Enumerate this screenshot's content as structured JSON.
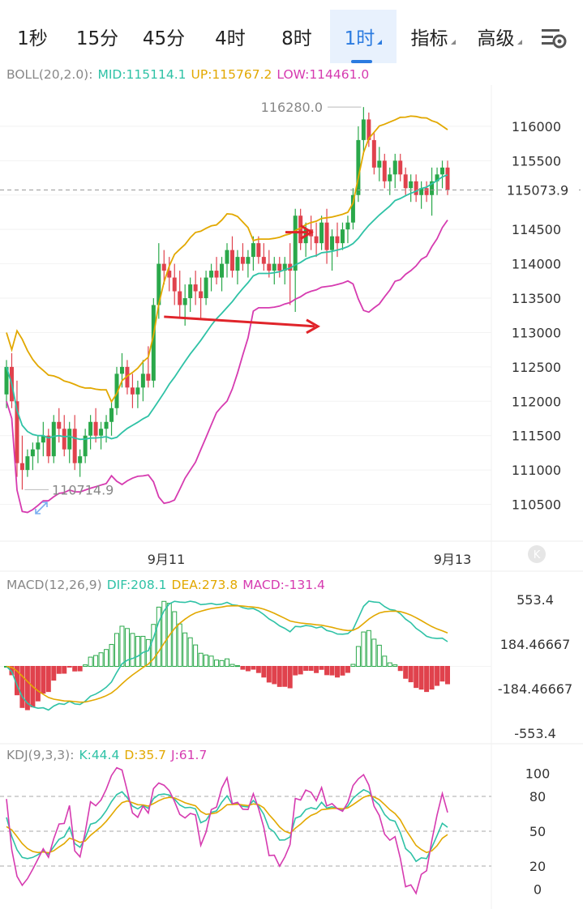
{
  "tabs": [
    {
      "label": "1秒",
      "active": false,
      "dropdown": false
    },
    {
      "label": "15分",
      "active": false,
      "dropdown": false
    },
    {
      "label": "45分",
      "active": false,
      "dropdown": false
    },
    {
      "label": "4时",
      "active": false,
      "dropdown": false
    },
    {
      "label": "8时",
      "active": false,
      "dropdown": false
    },
    {
      "label": "1时",
      "active": true,
      "dropdown": true
    },
    {
      "label": "指标",
      "active": false,
      "dropdown": true
    },
    {
      "label": "高级",
      "active": false,
      "dropdown": true
    }
  ],
  "settings_icon": "chart-settings-icon",
  "colors": {
    "up": "#2aa84a",
    "down": "#e0424d",
    "mid": "#2fc2a6",
    "upper": "#e2a800",
    "lower": "#d63bb0",
    "arrow": "#e0242a",
    "accent": "#2b7be0"
  },
  "boll": {
    "label": "BOLL(20,2.0):",
    "mid": "MID:115114.1",
    "up": "UP:115767.2",
    "low": "LOW:114461.0"
  },
  "macd": {
    "label": "MACD(12,26,9)",
    "dif": "DIF:208.1",
    "dea": "DEA:273.8",
    "macd": "MACD:-131.4"
  },
  "kdj": {
    "label": "KDJ(9,3,3):",
    "k": "K:44.4",
    "d": "D:35.7",
    "j": "J:61.7"
  },
  "chart_data": {
    "type": "candlestick",
    "price_axis": {
      "ticks": [
        "116000",
        "115500",
        "115000",
        "114500",
        "114000",
        "113500",
        "113000",
        "112500",
        "112000",
        "111500",
        "111000",
        "110500"
      ],
      "range": [
        110000,
        116600
      ]
    },
    "current_price": "115073.9",
    "high_annotation": "116280.0",
    "low_annotation": "110714.9",
    "x_labels": [
      "9月11",
      "9月13"
    ],
    "candles": [
      [
        112100,
        112600,
        111900,
        112500
      ],
      [
        112500,
        112700,
        111900,
        112000
      ],
      [
        112000,
        112300,
        110900,
        111100
      ],
      [
        111100,
        111500,
        110714.9,
        111000
      ],
      [
        111000,
        111300,
        110900,
        111200
      ],
      [
        111200,
        111400,
        111000,
        111300
      ],
      [
        111300,
        111500,
        111100,
        111400
      ],
      [
        111400,
        111700,
        111200,
        111500
      ],
      [
        111500,
        111600,
        111100,
        111200
      ],
      [
        111200,
        111800,
        111100,
        111700
      ],
      [
        111700,
        111900,
        111400,
        111600
      ],
      [
        111600,
        111800,
        111200,
        111300
      ],
      [
        111300,
        111700,
        111100,
        111600
      ],
      [
        111600,
        111800,
        111000,
        111100
      ],
      [
        111100,
        111300,
        110900,
        111200
      ],
      [
        111200,
        111600,
        111100,
        111500
      ],
      [
        111500,
        111800,
        111300,
        111700
      ],
      [
        111700,
        111900,
        111400,
        111500
      ],
      [
        111500,
        111700,
        111300,
        111600
      ],
      [
        111600,
        111800,
        111400,
        111700
      ],
      [
        111700,
        112000,
        111500,
        111900
      ],
      [
        111900,
        112500,
        111800,
        112400
      ],
      [
        112400,
        112700,
        112200,
        112500
      ],
      [
        112500,
        112600,
        112100,
        112200
      ],
      [
        112200,
        112400,
        111900,
        112100
      ],
      [
        112100,
        112300,
        111900,
        112200
      ],
      [
        112200,
        112600,
        112000,
        112400
      ],
      [
        112400,
        112800,
        112200,
        112300
      ],
      [
        112300,
        113500,
        112200,
        113400
      ],
      [
        113400,
        114300,
        113200,
        114000
      ],
      [
        114000,
        114200,
        113700,
        113900
      ],
      [
        113900,
        114100,
        113600,
        113800
      ],
      [
        113800,
        114000,
        113400,
        113600
      ],
      [
        113600,
        113900,
        113200,
        113400
      ],
      [
        113400,
        113700,
        113100,
        113500
      ],
      [
        113500,
        113800,
        113300,
        113700
      ],
      [
        113700,
        113900,
        113400,
        113600
      ],
      [
        113600,
        113800,
        113200,
        113500
      ],
      [
        113500,
        113900,
        113400,
        113800
      ],
      [
        113800,
        114000,
        113600,
        113900
      ],
      [
        113900,
        114100,
        113700,
        113800
      ],
      [
        113800,
        114100,
        113600,
        114000
      ],
      [
        114000,
        114300,
        113800,
        114200
      ],
      [
        114200,
        114400,
        113800,
        113900
      ],
      [
        113900,
        114200,
        113700,
        114100
      ],
      [
        114100,
        114300,
        113900,
        114000
      ],
      [
        114000,
        114200,
        113800,
        114100
      ],
      [
        114100,
        114400,
        113900,
        114300
      ],
      [
        114300,
        114400,
        114000,
        114100
      ],
      [
        114100,
        114300,
        113900,
        114000
      ],
      [
        114000,
        114200,
        113800,
        113900
      ],
      [
        113900,
        114100,
        113700,
        114000
      ],
      [
        114000,
        114100,
        113800,
        113900
      ],
      [
        113900,
        114100,
        113700,
        114000
      ],
      [
        114000,
        114300,
        113400,
        113900
      ],
      [
        113900,
        114800,
        113300,
        114700
      ],
      [
        114700,
        114800,
        114200,
        114300
      ],
      [
        114300,
        114600,
        114100,
        114500
      ],
      [
        114500,
        114700,
        114200,
        114400
      ],
      [
        114400,
        114600,
        114100,
        114300
      ],
      [
        114300,
        114700,
        114200,
        114600
      ],
      [
        114600,
        114800,
        114000,
        114200
      ],
      [
        114200,
        114500,
        113900,
        114400
      ],
      [
        114400,
        114600,
        114100,
        114300
      ],
      [
        114300,
        114600,
        114200,
        114500
      ],
      [
        114500,
        114700,
        114300,
        114600
      ],
      [
        114600,
        115100,
        114500,
        115000
      ],
      [
        115000,
        116000,
        114900,
        115800
      ],
      [
        115800,
        116280,
        115600,
        116100
      ],
      [
        116100,
        116200,
        115700,
        115800
      ],
      [
        115800,
        115900,
        115300,
        115400
      ],
      [
        115400,
        115700,
        115200,
        115500
      ],
      [
        115500,
        115600,
        115100,
        115200
      ],
      [
        115200,
        115400,
        115000,
        115300
      ],
      [
        115300,
        115600,
        115100,
        115500
      ],
      [
        115500,
        115600,
        115200,
        115300
      ],
      [
        115300,
        115400,
        115000,
        115100
      ],
      [
        115100,
        115300,
        114900,
        115200
      ],
      [
        115200,
        115300,
        114900,
        115000
      ],
      [
        115000,
        115200,
        114800,
        115100
      ],
      [
        115100,
        115200,
        114900,
        115000
      ],
      [
        115000,
        115400,
        114700,
        115200
      ],
      [
        115200,
        115400,
        115000,
        115300
      ],
      [
        115300,
        115500,
        115100,
        115400
      ],
      [
        115400,
        115500,
        115000,
        115073.9
      ]
    ],
    "macd_axis": {
      "ticks": [
        "553.4",
        "184.46667",
        "-184.46667",
        "-553.4"
      ],
      "range": [
        -553.4,
        553.4
      ]
    },
    "kdj_axis": {
      "ticks": [
        "100",
        "80",
        "50",
        "20",
        "0"
      ],
      "range": [
        -10,
        110
      ]
    }
  }
}
